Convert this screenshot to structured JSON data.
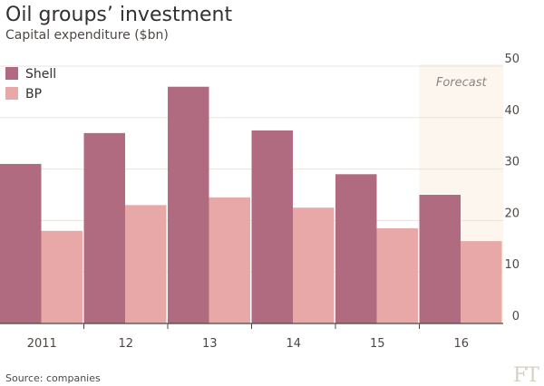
{
  "chart_data": {
    "type": "bar",
    "title": "Oil groups’ investment",
    "subtitle": "Capital expenditure ($bn)",
    "categories": [
      "2011",
      "12",
      "13",
      "14",
      "15",
      "16"
    ],
    "series": [
      {
        "name": "Shell",
        "color": "#b06b80",
        "values": [
          31,
          37,
          46,
          37.5,
          29,
          25
        ]
      },
      {
        "name": "BP",
        "color": "#e8a8a8",
        "values": [
          18,
          23,
          24.5,
          22.5,
          18.5,
          16
        ]
      }
    ],
    "ylim": [
      0,
      50
    ],
    "yticks": [
      0,
      10,
      20,
      30,
      40,
      50
    ],
    "ylabel": "",
    "xlabel": "",
    "grid": true,
    "legend": "top-left",
    "annotation": "Forecast",
    "forecast_category": "16",
    "forecast_color": "#fdf6ee",
    "source": "Source: companies",
    "logo": "FT"
  }
}
